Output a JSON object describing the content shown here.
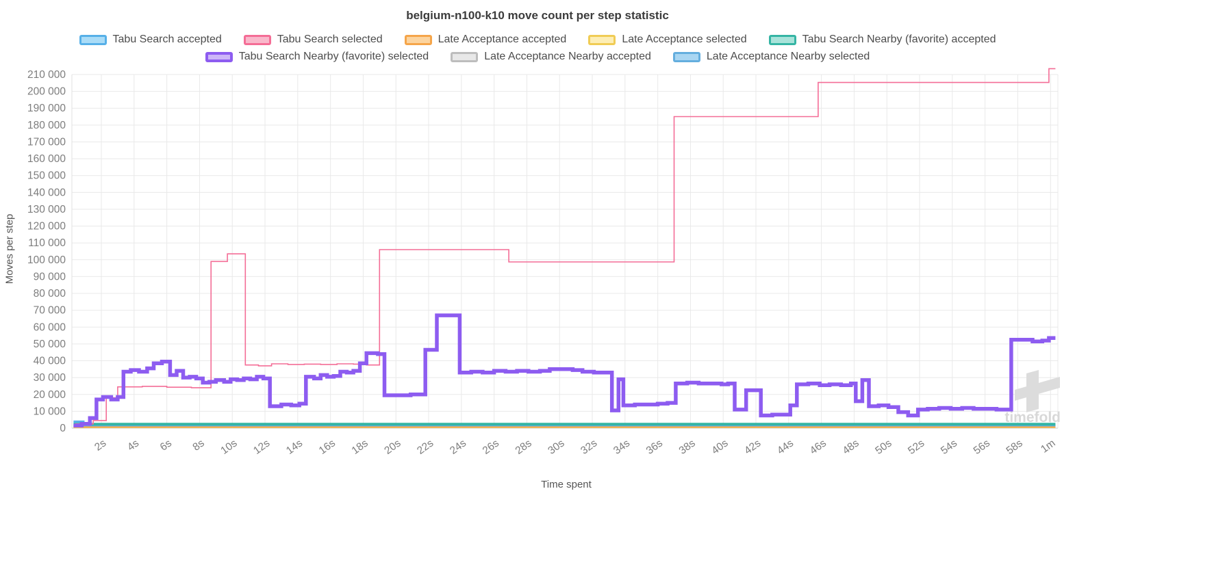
{
  "chart_data": {
    "type": "line",
    "title": "belgium-n100-k10 move count per step statistic",
    "xlabel": "Time spent",
    "ylabel": "Moves per step",
    "watermark": "timefold",
    "grid": true,
    "legend_position": "top",
    "x_axis": {
      "min_seconds": 0.2,
      "max_seconds": 60.45,
      "ticks": [
        [
          2,
          "2s"
        ],
        [
          4,
          "4s"
        ],
        [
          6,
          "6s"
        ],
        [
          8,
          "8s"
        ],
        [
          10,
          "10s"
        ],
        [
          12,
          "12s"
        ],
        [
          14,
          "14s"
        ],
        [
          16,
          "16s"
        ],
        [
          18,
          "18s"
        ],
        [
          20,
          "20s"
        ],
        [
          22,
          "22s"
        ],
        [
          24,
          "24s"
        ],
        [
          26,
          "26s"
        ],
        [
          28,
          "28s"
        ],
        [
          30,
          "30s"
        ],
        [
          32,
          "32s"
        ],
        [
          34,
          "34s"
        ],
        [
          36,
          "36s"
        ],
        [
          38,
          "38s"
        ],
        [
          40,
          "40s"
        ],
        [
          42,
          "42s"
        ],
        [
          44,
          "44s"
        ],
        [
          46,
          "46s"
        ],
        [
          48,
          "48s"
        ],
        [
          50,
          "50s"
        ],
        [
          52,
          "52s"
        ],
        [
          54,
          "54s"
        ],
        [
          56,
          "56s"
        ],
        [
          58,
          "58s"
        ],
        [
          60,
          "1m"
        ]
      ]
    },
    "y_axis": {
      "min": 0,
      "max": 210000,
      "step": 10000
    },
    "legend_rows": [
      [
        0,
        1,
        2,
        3,
        4
      ],
      [
        5,
        6,
        7
      ]
    ],
    "z_order": [
      7,
      6,
      3,
      2,
      0,
      4,
      1,
      5
    ],
    "series": [
      {
        "name": "Tabu Search accepted",
        "fill": "#aadcf7",
        "stroke": "#56b0e8",
        "width": 3.5,
        "points": [
          [
            0.3,
            3800
          ],
          [
            0.9,
            1800
          ],
          [
            60.3,
            1800
          ]
        ]
      },
      {
        "name": "Tabu Search selected",
        "fill": "#f9b8cb",
        "stroke": "#f46d96",
        "width": 1.6,
        "points": [
          [
            0.4,
            2500
          ],
          [
            1.5,
            4500
          ],
          [
            2.3,
            18000
          ],
          [
            3.0,
            24500
          ],
          [
            4.5,
            24800
          ],
          [
            6.0,
            24300
          ],
          [
            7.5,
            24000
          ],
          [
            8.7,
            99000
          ],
          [
            9.7,
            103500
          ],
          [
            10.8,
            37500
          ],
          [
            11.6,
            37000
          ],
          [
            12.4,
            38200
          ],
          [
            13.4,
            37800
          ],
          [
            14.4,
            38000
          ],
          [
            15.4,
            37800
          ],
          [
            16.4,
            38200
          ],
          [
            17.4,
            38000
          ],
          [
            18.2,
            37500
          ],
          [
            19.0,
            106000
          ],
          [
            26.9,
            98700
          ],
          [
            37.0,
            185000
          ],
          [
            45.8,
            205300
          ],
          [
            59.9,
            213500
          ],
          [
            60.3,
            213500
          ]
        ]
      },
      {
        "name": "Late Acceptance accepted",
        "fill": "#fcd49f",
        "stroke": "#f5a54a",
        "width": 2,
        "points": [
          [
            0.3,
            650
          ],
          [
            60.3,
            650
          ]
        ]
      },
      {
        "name": "Late Acceptance selected",
        "fill": "#fdeeb5",
        "stroke": "#f0cc55",
        "width": 2,
        "points": [
          [
            0.3,
            450
          ],
          [
            60.3,
            450
          ]
        ]
      },
      {
        "name": "Tabu Search Nearby (favorite) accepted",
        "fill": "#a9e3da",
        "stroke": "#35b5a4",
        "width": 4,
        "points": [
          [
            0.3,
            2300
          ],
          [
            60.3,
            2300
          ]
        ]
      },
      {
        "name": "Tabu Search Nearby (favorite) selected",
        "fill": "#cdb6f8",
        "stroke": "#8d5cf0",
        "width": 5.5,
        "points": [
          [
            0.3,
            1500
          ],
          [
            0.8,
            2500
          ],
          [
            1.3,
            6000
          ],
          [
            1.7,
            17000
          ],
          [
            2.1,
            18500
          ],
          [
            2.6,
            17000
          ],
          [
            3.0,
            18500
          ],
          [
            3.35,
            33500
          ],
          [
            3.8,
            34500
          ],
          [
            4.3,
            33500
          ],
          [
            4.8,
            35500
          ],
          [
            5.2,
            38500
          ],
          [
            5.7,
            39500
          ],
          [
            6.2,
            31500
          ],
          [
            6.6,
            34000
          ],
          [
            7.0,
            30000
          ],
          [
            7.4,
            30500
          ],
          [
            7.8,
            29500
          ],
          [
            8.2,
            27000
          ],
          [
            8.6,
            27500
          ],
          [
            9.0,
            28500
          ],
          [
            9.5,
            27500
          ],
          [
            9.9,
            29000
          ],
          [
            10.3,
            28500
          ],
          [
            10.7,
            29500
          ],
          [
            11.1,
            29000
          ],
          [
            11.5,
            30500
          ],
          [
            11.9,
            29500
          ],
          [
            12.3,
            13000
          ],
          [
            13.0,
            14000
          ],
          [
            13.6,
            13500
          ],
          [
            14.1,
            14500
          ],
          [
            14.5,
            30500
          ],
          [
            15.0,
            29500
          ],
          [
            15.4,
            31500
          ],
          [
            15.8,
            30500
          ],
          [
            16.2,
            31000
          ],
          [
            16.6,
            33500
          ],
          [
            17.0,
            33000
          ],
          [
            17.4,
            34000
          ],
          [
            17.8,
            38500
          ],
          [
            18.2,
            44500
          ],
          [
            18.9,
            44000
          ],
          [
            19.3,
            19500
          ],
          [
            20.1,
            19500
          ],
          [
            20.9,
            20000
          ],
          [
            21.8,
            46500
          ],
          [
            22.5,
            67000
          ],
          [
            23.9,
            33000
          ],
          [
            24.6,
            33500
          ],
          [
            25.3,
            33000
          ],
          [
            26.0,
            34000
          ],
          [
            26.7,
            33500
          ],
          [
            27.4,
            34000
          ],
          [
            28.1,
            33500
          ],
          [
            28.8,
            34000
          ],
          [
            29.4,
            35000
          ],
          [
            30.1,
            35000
          ],
          [
            30.8,
            34500
          ],
          [
            31.4,
            33500
          ],
          [
            32.1,
            33000
          ],
          [
            32.9,
            33000
          ],
          [
            33.2,
            10500
          ],
          [
            33.6,
            29000
          ],
          [
            33.9,
            13500
          ],
          [
            34.6,
            14000
          ],
          [
            35.3,
            14000
          ],
          [
            36.0,
            14500
          ],
          [
            36.6,
            15000
          ],
          [
            37.1,
            26500
          ],
          [
            37.8,
            27000
          ],
          [
            38.5,
            26500
          ],
          [
            39.2,
            26500
          ],
          [
            39.9,
            26000
          ],
          [
            40.3,
            26500
          ],
          [
            40.7,
            11000
          ],
          [
            41.4,
            22500
          ],
          [
            42.3,
            7500
          ],
          [
            43.0,
            8000
          ],
          [
            43.7,
            8000
          ],
          [
            44.1,
            13500
          ],
          [
            44.5,
            26000
          ],
          [
            45.2,
            26500
          ],
          [
            45.9,
            25500
          ],
          [
            46.5,
            26000
          ],
          [
            47.2,
            25500
          ],
          [
            47.8,
            26500
          ],
          [
            48.1,
            16000
          ],
          [
            48.5,
            28500
          ],
          [
            48.9,
            13000
          ],
          [
            49.5,
            13500
          ],
          [
            50.1,
            12500
          ],
          [
            50.7,
            9500
          ],
          [
            51.3,
            7500
          ],
          [
            51.9,
            11000
          ],
          [
            52.5,
            11500
          ],
          [
            53.2,
            12000
          ],
          [
            53.9,
            11500
          ],
          [
            54.6,
            12000
          ],
          [
            55.3,
            11500
          ],
          [
            56.0,
            11500
          ],
          [
            56.7,
            11000
          ],
          [
            57.3,
            11000
          ],
          [
            57.6,
            52500
          ],
          [
            58.3,
            52500
          ],
          [
            58.9,
            51500
          ],
          [
            59.5,
            52000
          ],
          [
            59.9,
            53500
          ],
          [
            60.3,
            53500
          ]
        ]
      },
      {
        "name": "Late Acceptance Nearby accepted",
        "fill": "#e8e8e8",
        "stroke": "#bdbdbd",
        "width": 2.5,
        "points": [
          [
            0.3,
            1000
          ],
          [
            60.3,
            1000
          ]
        ]
      },
      {
        "name": "Late Acceptance Nearby selected",
        "fill": "#a9d6f2",
        "stroke": "#64aede",
        "width": 3,
        "points": [
          [
            0.3,
            1400
          ],
          [
            60.3,
            1400
          ]
        ]
      }
    ]
  }
}
